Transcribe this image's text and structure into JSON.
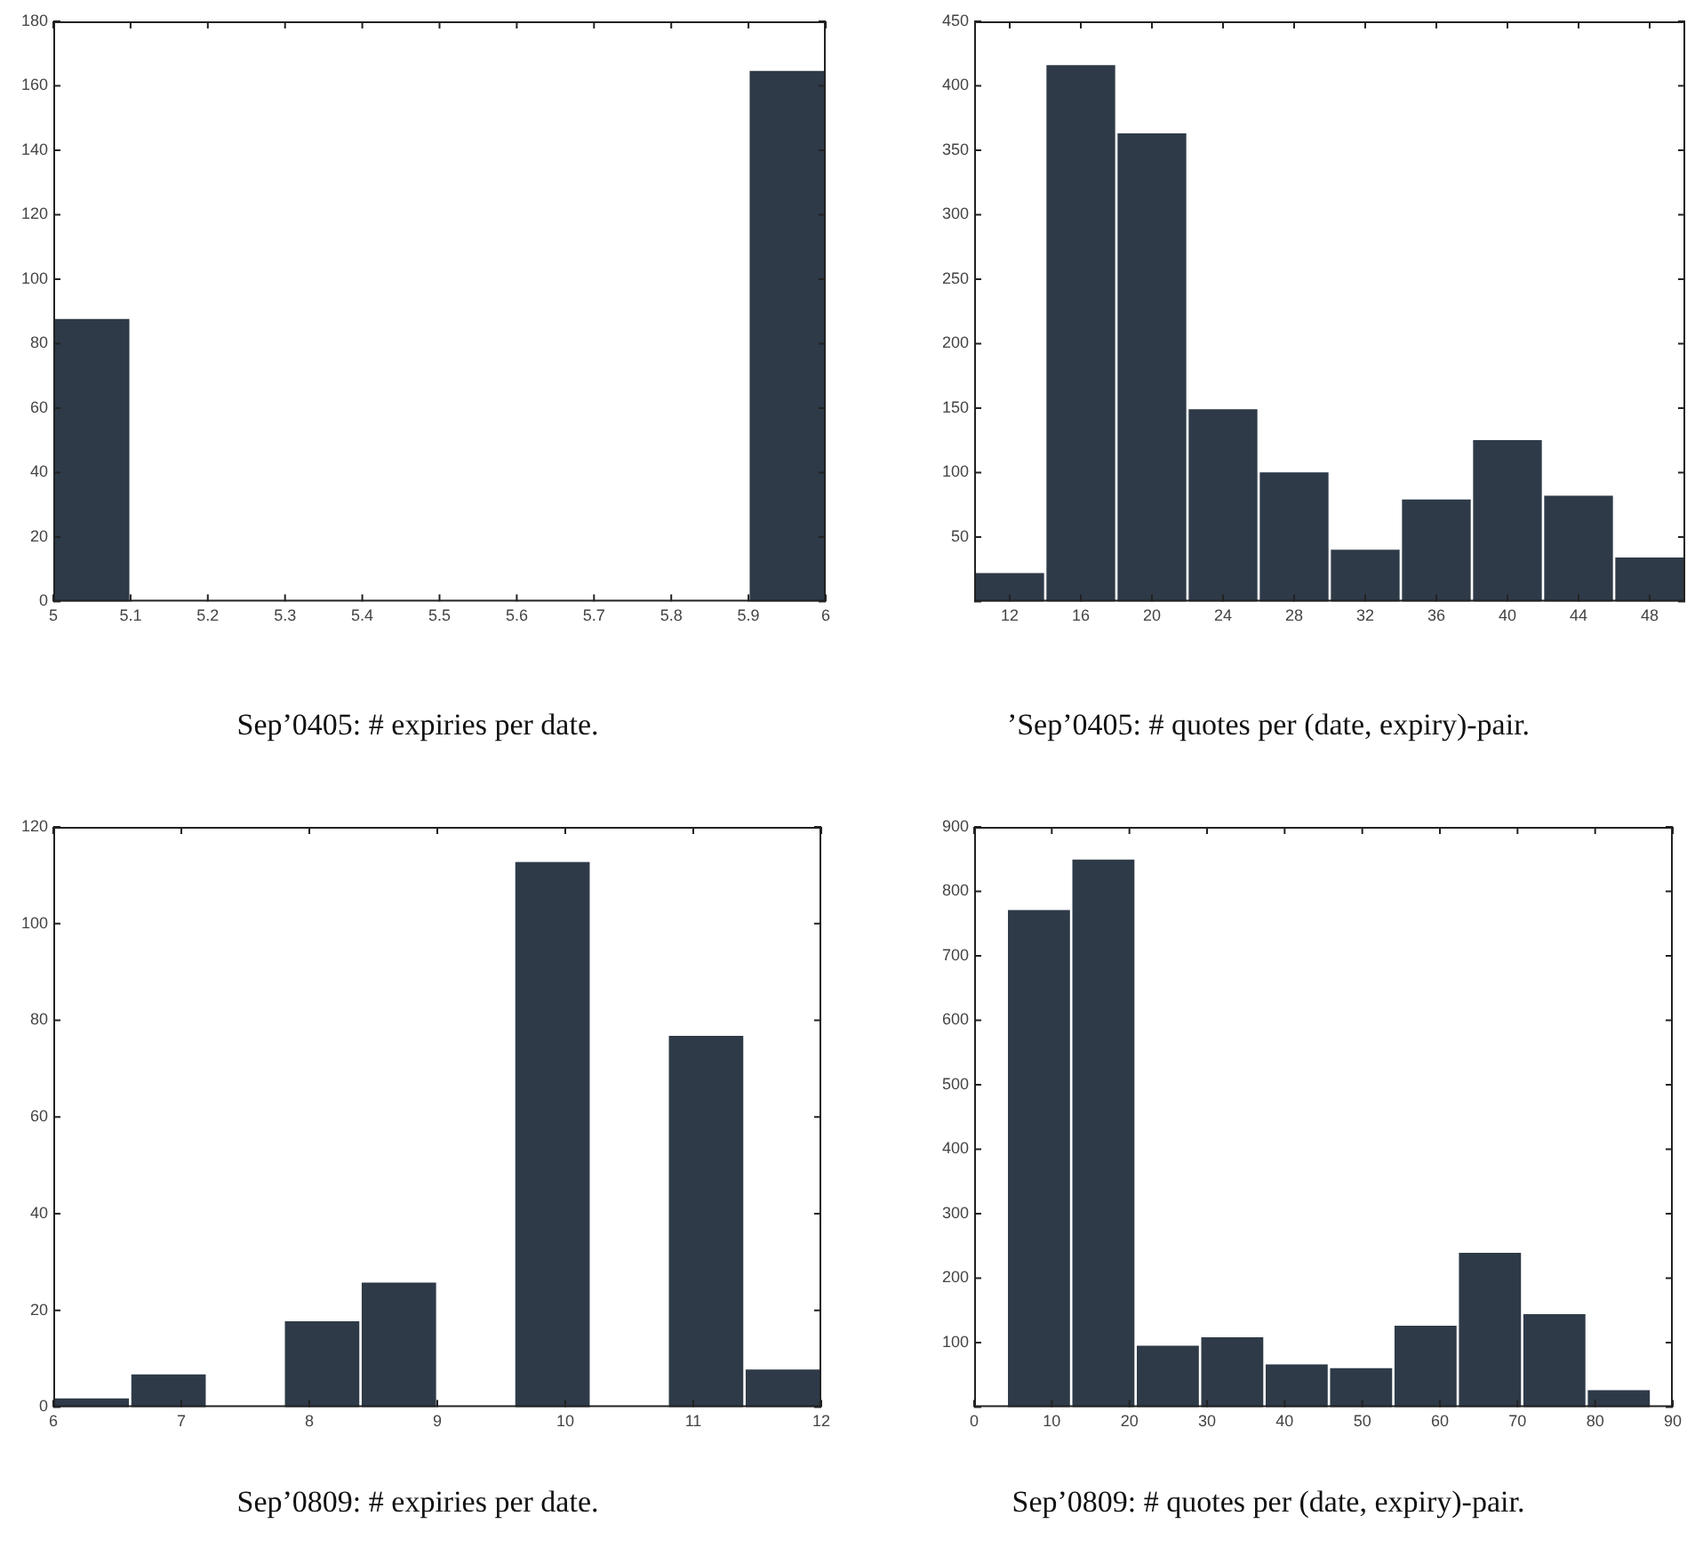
{
  "chart_data": [
    {
      "type": "histogram",
      "title": "Sep’0405: # expiries per date.",
      "bins": [
        5,
        5.1,
        5.2,
        5.3,
        5.4,
        5.5,
        5.6,
        5.7,
        5.8,
        5.9,
        6
      ],
      "values": [
        88,
        0,
        0,
        0,
        0,
        0,
        0,
        0,
        0,
        165
      ],
      "color": "#2e3a48",
      "xlim": [
        5,
        6
      ],
      "xticks": [
        5,
        5.1,
        5.2,
        5.3,
        5.4,
        5.5,
        5.6,
        5.7,
        5.8,
        5.9,
        6
      ],
      "ylim": [
        0,
        180
      ],
      "yticks": [
        0,
        20,
        40,
        60,
        80,
        100,
        120,
        140,
        160,
        180
      ],
      "grid": false
    },
    {
      "type": "histogram",
      "title": "’Sep’0405: # quotes per (date, expiry)-pair.",
      "bins": [
        10,
        14,
        18,
        22,
        26,
        30,
        34,
        38,
        42,
        46,
        50
      ],
      "values": [
        23,
        417,
        364,
        150,
        101,
        41,
        80,
        126,
        83,
        35
      ],
      "color": "#2e3a48",
      "xlim": [
        10,
        50
      ],
      "xticks": [
        12,
        16,
        20,
        24,
        28,
        32,
        36,
        40,
        44,
        48
      ],
      "ylim": [
        0,
        450
      ],
      "yticks": [
        {
          "value": 0,
          "label": null
        },
        50,
        100,
        150,
        200,
        250,
        300,
        350,
        400,
        450
      ],
      "grid": false
    },
    {
      "type": "histogram",
      "title": "Sep’0809: # expiries per date.",
      "bins": [
        6,
        6.6,
        7.2,
        7.8,
        8.4,
        9,
        9.6,
        10.2,
        10.8,
        11.4,
        12
      ],
      "values": [
        2,
        7,
        0,
        18,
        26,
        0,
        113,
        0,
        77,
        8
      ],
      "color": "#2e3a48",
      "xlim": [
        6,
        12
      ],
      "xticks": [
        6,
        7,
        8,
        9,
        10,
        11,
        12
      ],
      "ylim": [
        0,
        120
      ],
      "yticks": [
        0,
        20,
        40,
        60,
        80,
        100,
        120
      ],
      "grid": false
    },
    {
      "type": "histogram",
      "title": "Sep’0809: # quotes per (date, expiry)-pair.",
      "bins": [
        4.2,
        12.5,
        20.8,
        29.1,
        37.4,
        45.7,
        54,
        62.3,
        70.6,
        78.9,
        87.2
      ],
      "values": [
        773,
        851,
        97,
        110,
        68,
        62,
        128,
        241,
        146,
        28
      ],
      "color": "#2e3a48",
      "xlim": [
        0,
        90
      ],
      "xticks": [
        0,
        10,
        20,
        30,
        40,
        50,
        60,
        70,
        80,
        90
      ],
      "ylim": [
        0,
        900
      ],
      "yticks": [
        {
          "value": 0,
          "label": null
        },
        100,
        200,
        300,
        400,
        500,
        600,
        700,
        800,
        900
      ],
      "grid": false
    }
  ]
}
